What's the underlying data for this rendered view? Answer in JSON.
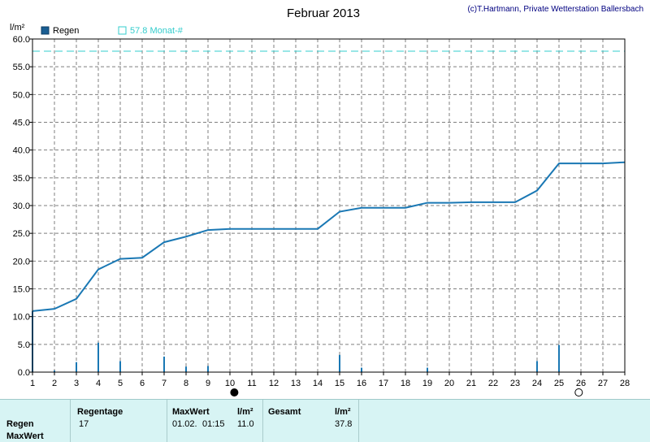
{
  "chart_data": {
    "type": "bar+line",
    "title": "Februar 2013",
    "copyright": "(c)T.Hartmann, Private Wetterstation Ballersbach",
    "y_unit": "l/m²",
    "ylim": [
      0,
      60
    ],
    "xlim": [
      1,
      28
    ],
    "y_ticks": [
      "0.0",
      "5.0",
      "10.0",
      "15.0",
      "20.0",
      "25.0",
      "30.0",
      "35.0",
      "40.0",
      "45.0",
      "50.0",
      "55.0",
      "60.0"
    ],
    "x_ticks": [
      "1",
      "2",
      "3",
      "4",
      "5",
      "6",
      "7",
      "8",
      "9",
      "10",
      "11",
      "12",
      "13",
      "14",
      "15",
      "16",
      "17",
      "18",
      "19",
      "20",
      "21",
      "22",
      "23",
      "24",
      "25",
      "26",
      "27",
      "28"
    ],
    "legend": {
      "bar_label": "Regen",
      "line_label": "57.8 Monat-#"
    },
    "monthly_reference": 57.8,
    "bars": {
      "name": "Regen",
      "x": [
        1,
        2,
        3,
        4,
        5,
        7,
        8,
        9,
        15,
        16,
        19,
        24,
        25
      ],
      "values": [
        11.0,
        0.3,
        1.8,
        5.3,
        2.0,
        2.8,
        1.0,
        1.1,
        3.1,
        0.8,
        0.8,
        2.0,
        4.9
      ]
    },
    "cumulative": {
      "x": [
        1,
        2,
        3,
        4,
        5,
        6,
        7,
        8,
        9,
        10,
        11,
        12,
        13,
        14,
        15,
        16,
        17,
        18,
        19,
        20,
        21,
        22,
        23,
        24,
        25,
        26,
        27,
        28
      ],
      "values": [
        11.0,
        11.4,
        13.2,
        18.5,
        20.4,
        20.6,
        23.4,
        24.4,
        25.6,
        25.8,
        25.8,
        25.8,
        25.8,
        25.8,
        28.9,
        29.6,
        29.6,
        29.6,
        30.5,
        30.5,
        30.6,
        30.6,
        30.6,
        32.7,
        37.6,
        37.6,
        37.6,
        37.8
      ]
    },
    "markers": [
      {
        "x": 10.2,
        "symbol": "full-moon"
      },
      {
        "x": 25.9,
        "symbol": "new-moon"
      }
    ],
    "colors": {
      "bar": "#1a78b4",
      "line": "#1a78b4",
      "reference": "#33cccc",
      "grid": "#7f7f7f"
    }
  },
  "summary": {
    "row_labels": [
      "Regen",
      "MaxWert"
    ],
    "regentage_label": "Regentage",
    "regentage_value": "17",
    "maxwert_label": "MaxWert",
    "maxwert_unit": "l/m²",
    "maxwert_date": "01.02.",
    "maxwert_time": "01:15",
    "maxwert_value": "11.0",
    "gesamt_label": "Gesamt",
    "gesamt_unit": "l/m²",
    "gesamt_value": "37.8"
  }
}
